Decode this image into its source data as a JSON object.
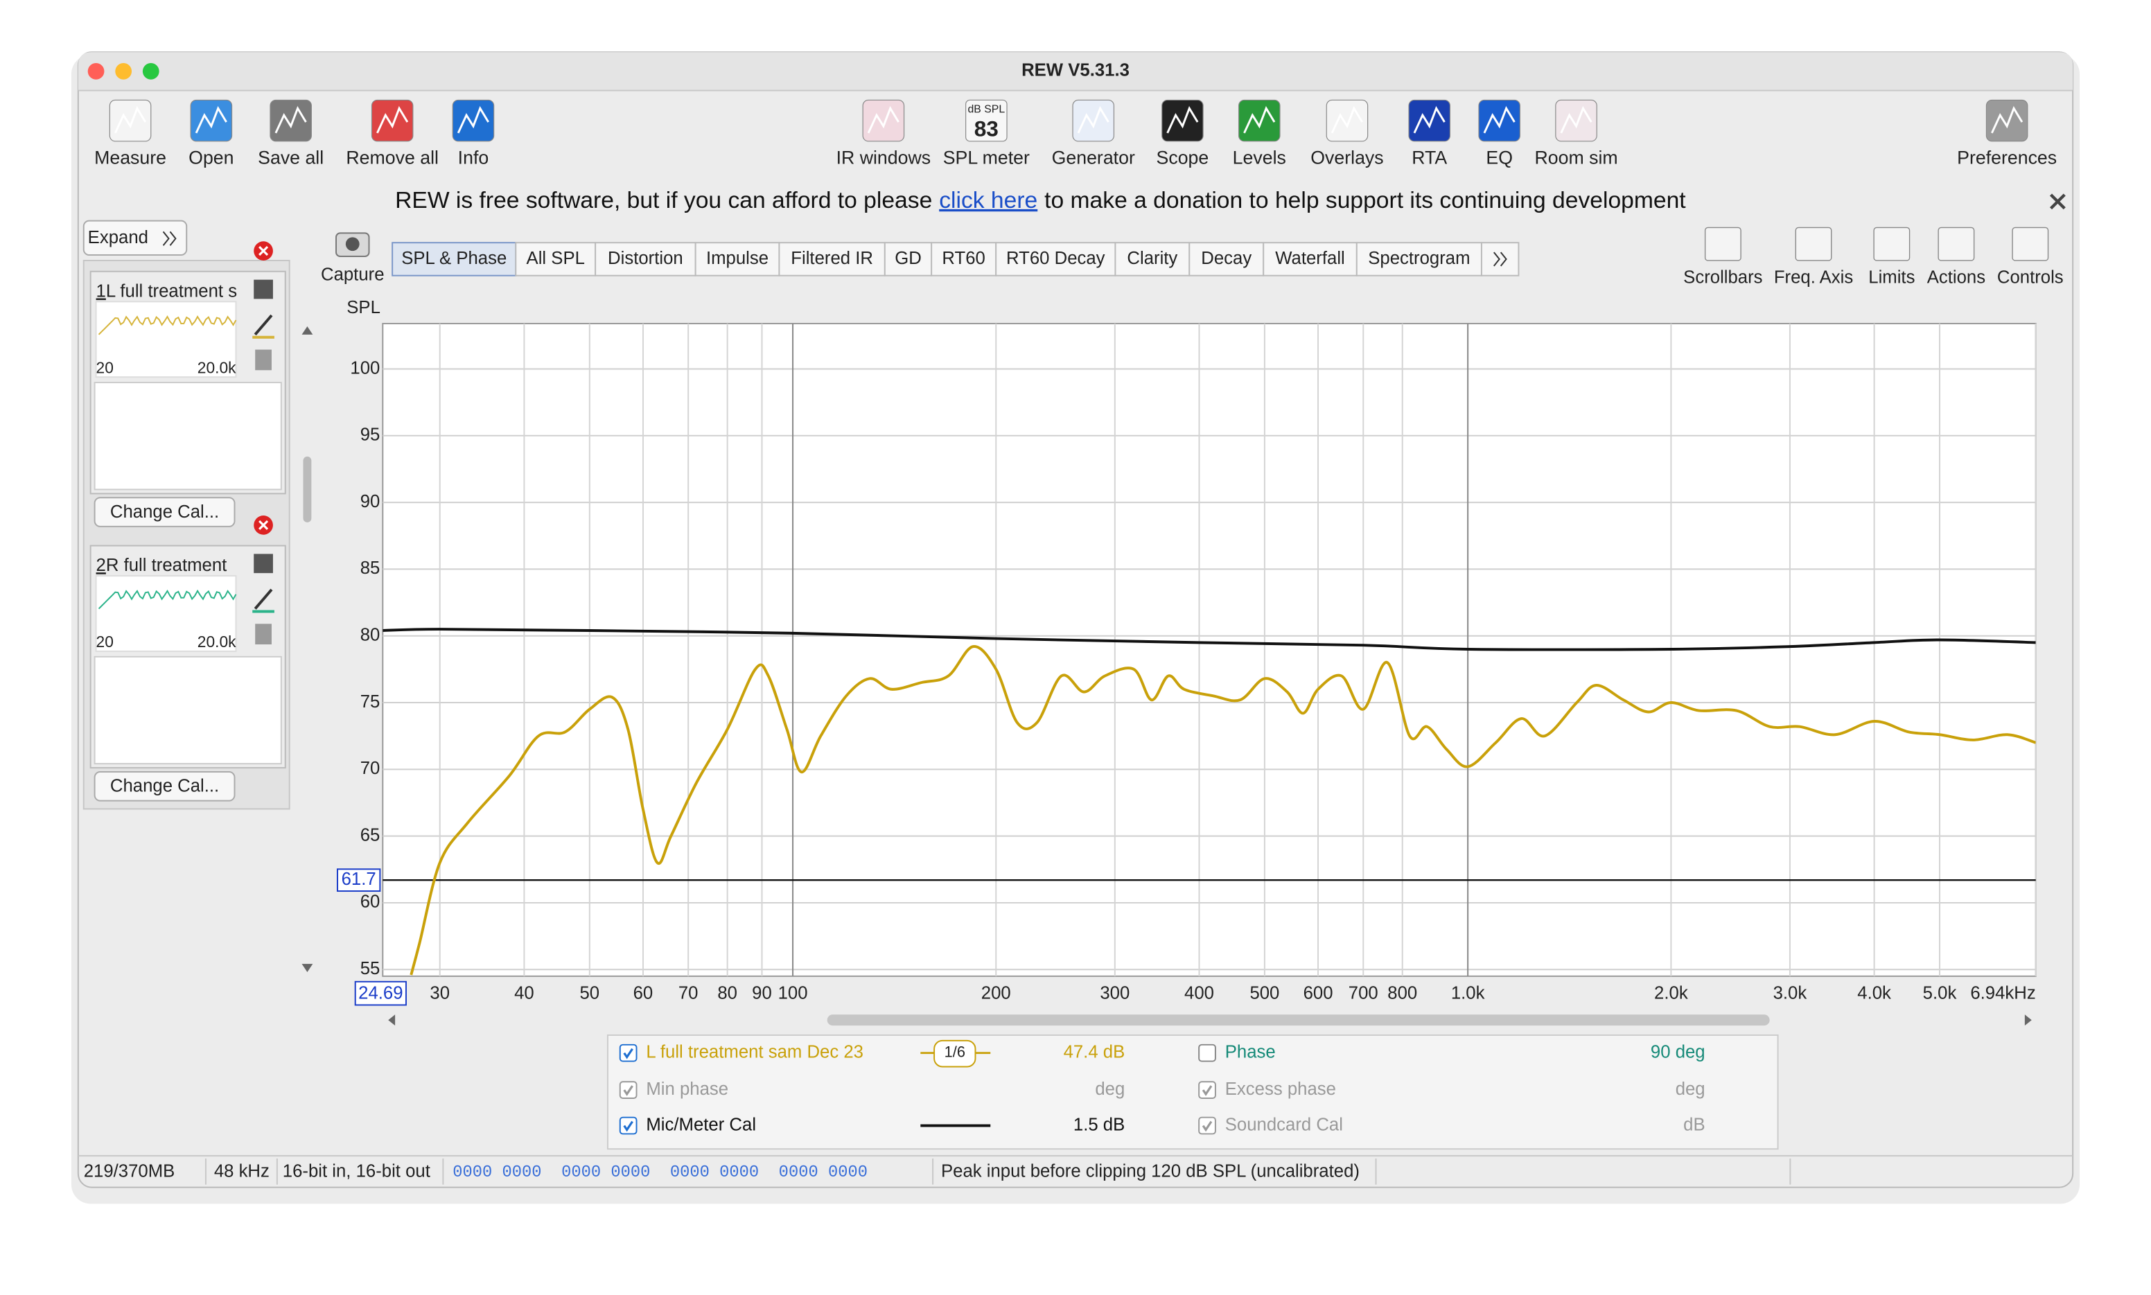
{
  "window": {
    "title": "REW V5.31.3"
  },
  "toolbar": {
    "left": [
      "Measure",
      "Open",
      "Save all",
      "Remove all",
      "Info"
    ],
    "middle": [
      "IR windows",
      "SPL meter",
      "Generator",
      "Scope",
      "Levels",
      "Overlays",
      "RTA",
      "EQ",
      "Room sim"
    ],
    "right": [
      "Preferences"
    ],
    "spl_meter_icon": {
      "unit": "dB SPL",
      "reading": "83"
    }
  },
  "banner": {
    "before": "REW is free software, but if you can afford to please",
    "link": "click here",
    "after": "to make a donation to help support its continuing development"
  },
  "measurements": {
    "expand": "Expand",
    "items": [
      {
        "index": "1",
        "name": "L full treatment s",
        "min": "20",
        "max": "20.0k",
        "button": "Change Cal..."
      },
      {
        "index": "2",
        "name": "R full treatment",
        "min": "20",
        "max": "20.0k",
        "button": "Change Cal..."
      }
    ]
  },
  "graph_tabs": {
    "capture": "Capture",
    "tabs": [
      "SPL & Phase",
      "All SPL",
      "Distortion",
      "Impulse",
      "Filtered IR",
      "GD",
      "RT60",
      "RT60 Decay",
      "Clarity",
      "Decay",
      "Waterfall",
      "Spectrogram"
    ]
  },
  "graph_tools": [
    "Scrollbars",
    "Freq. Axis",
    "Limits",
    "Actions",
    "Controls"
  ],
  "chart_data": {
    "type": "line",
    "y_label": "SPL",
    "xscale": "log",
    "xlim": [
      24.69,
      6940
    ],
    "ylim": [
      54.5,
      103.4
    ],
    "xticks": [
      30,
      40,
      50,
      60,
      70,
      80,
      90,
      100,
      200,
      300,
      400,
      500,
      600,
      700,
      800,
      {
        "value": 1000,
        "label": "1.0k"
      },
      {
        "value": 2000,
        "label": "2.0k"
      },
      {
        "value": 3000,
        "label": "3.0k"
      },
      {
        "value": 4000,
        "label": "4.0k"
      },
      {
        "value": 5000,
        "label": "5.0k"
      },
      {
        "value": 6940,
        "label": "6.94kHz"
      }
    ],
    "yticks": [
      55,
      60,
      65,
      70,
      75,
      80,
      85,
      90,
      95,
      100
    ],
    "grid": true,
    "cursor_y": 61.7,
    "series": [
      {
        "name": "L full treatment sam Dec 23",
        "color": "#c9a10a",
        "x": [
          27.2,
          28,
          30,
          33,
          38,
          42,
          46,
          50,
          54,
          57,
          60,
          63,
          66,
          72,
          80,
          88,
          92,
          98,
          103,
          110,
          120,
          130,
          140,
          155,
          170,
          185,
          200,
          215,
          230,
          250,
          270,
          290,
          320,
          340,
          360,
          380,
          420,
          460,
          500,
          540,
          570,
          600,
          650,
          700,
          760,
          820,
          870,
          930,
          1000,
          1100,
          1200,
          1300,
          1450,
          1550,
          1700,
          1850,
          2000,
          2200,
          2500,
          2800,
          3100,
          3500,
          4000,
          4500,
          5000,
          5600,
          6300,
          6940
        ],
        "values": [
          54.6,
          57,
          63,
          66,
          69.5,
          72.5,
          72.8,
          74.5,
          75.4,
          73,
          67,
          63,
          65,
          69,
          73,
          77.5,
          77,
          73,
          69.8,
          72.5,
          75.5,
          76.8,
          76,
          76.5,
          77,
          79.2,
          77.5,
          73.5,
          73.5,
          77,
          75.8,
          77,
          77.5,
          75.2,
          77,
          76,
          75.5,
          75.2,
          76.8,
          75.8,
          74.2,
          76,
          77,
          74.5,
          78,
          72.5,
          73.2,
          71.5,
          70.2,
          72,
          73.8,
          72.5,
          75,
          76.3,
          75.2,
          74.3,
          75,
          74.4,
          74.4,
          73.2,
          73.2,
          72.6,
          73.6,
          72.8,
          72.6,
          72.2,
          72.6,
          72
        ]
      },
      {
        "name": "Mic/Meter Cal",
        "color": "#111111",
        "x": [
          24.69,
          30,
          50,
          100,
          200,
          400,
          700,
          1000,
          2000,
          3000,
          4000,
          5000,
          6940
        ],
        "values": [
          80.4,
          80.5,
          80.4,
          80.2,
          79.8,
          79.5,
          79.3,
          79.0,
          79.0,
          79.2,
          79.5,
          79.7,
          79.5
        ]
      }
    ]
  },
  "curve_panel": {
    "rows": [
      {
        "smoothing": "1/6",
        "value": "47.4 dB",
        "extra_label": "Phase",
        "extra_value": "90 deg"
      },
      {
        "label": "Min phase",
        "value": "deg",
        "extra_label": "Excess phase",
        "extra_value": "deg"
      },
      {
        "value": "1.5 dB",
        "extra_label": "Soundcard Cal",
        "extra_value": "dB"
      }
    ]
  },
  "status_bar": {
    "memory": "219/370MB",
    "sample_rate": "48 kHz",
    "bit_depth": "16-bit in, 16-bit out",
    "levels": "0000 0000  0000 0000  0000 0000  0000 0000",
    "peak_input": "Peak input before clipping 120 dB SPL (uncalibrated)"
  }
}
